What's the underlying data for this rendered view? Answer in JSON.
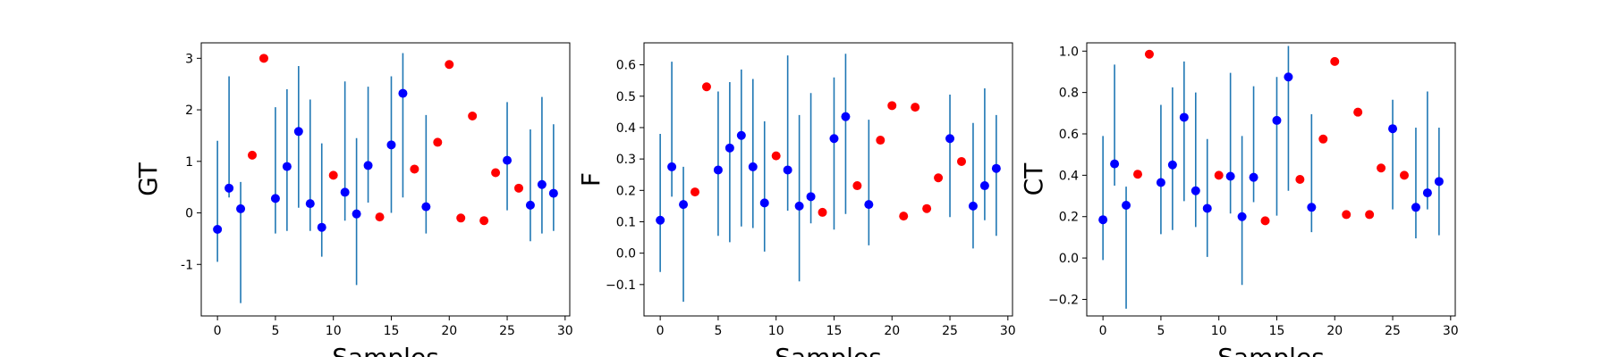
{
  "chart_data": [
    {
      "type": "scatter",
      "ylabel": "GT",
      "xlabel": "Samples",
      "xlim": [
        -1.4,
        30.4
      ],
      "ylim": [
        -2.0,
        3.3
      ],
      "xticks": [
        0,
        5,
        10,
        15,
        20,
        25,
        30
      ],
      "yticks": [
        -1,
        0,
        1,
        2,
        3
      ],
      "errorbar_series": {
        "color": "#0000ff",
        "errorbar_color": "#1f77b4",
        "points": [
          {
            "x": 0,
            "y": -0.32,
            "low": -0.95,
            "high": 1.4
          },
          {
            "x": 1,
            "y": 0.48,
            "low": 0.3,
            "high": 2.65
          },
          {
            "x": 2,
            "y": 0.08,
            "low": -1.75,
            "high": 0.6
          },
          {
            "x": 5,
            "y": 0.28,
            "low": -0.4,
            "high": 2.05
          },
          {
            "x": 6,
            "y": 0.9,
            "low": -0.35,
            "high": 2.4
          },
          {
            "x": 7,
            "y": 1.58,
            "low": 0.1,
            "high": 2.85
          },
          {
            "x": 8,
            "y": 0.18,
            "low": -0.35,
            "high": 2.2
          },
          {
            "x": 9,
            "y": -0.28,
            "low": -0.85,
            "high": 1.35
          },
          {
            "x": 11,
            "y": 0.4,
            "low": -0.15,
            "high": 2.55
          },
          {
            "x": 12,
            "y": -0.02,
            "low": -1.4,
            "high": 1.45
          },
          {
            "x": 13,
            "y": 0.92,
            "low": 0.2,
            "high": 2.45
          },
          {
            "x": 15,
            "y": 1.32,
            "low": 0.0,
            "high": 2.65
          },
          {
            "x": 16,
            "y": 2.32,
            "low": 0.3,
            "high": 3.1
          },
          {
            "x": 18,
            "y": 0.12,
            "low": -0.4,
            "high": 1.9
          },
          {
            "x": 25,
            "y": 1.02,
            "low": 0.05,
            "high": 2.15
          },
          {
            "x": 27,
            "y": 0.15,
            "low": -0.55,
            "high": 1.62
          },
          {
            "x": 28,
            "y": 0.55,
            "low": -0.4,
            "high": 2.25
          },
          {
            "x": 29,
            "y": 0.38,
            "low": -0.35,
            "high": 1.72
          }
        ]
      },
      "marker_series": {
        "color": "#ff0000",
        "points": [
          {
            "x": 3,
            "y": 1.12
          },
          {
            "x": 4,
            "y": 3.0
          },
          {
            "x": 10,
            "y": 0.73
          },
          {
            "x": 14,
            "y": -0.08
          },
          {
            "x": 17,
            "y": 0.85
          },
          {
            "x": 19,
            "y": 1.37
          },
          {
            "x": 20,
            "y": 2.88
          },
          {
            "x": 21,
            "y": -0.1
          },
          {
            "x": 22,
            "y": 1.88
          },
          {
            "x": 23,
            "y": -0.15
          },
          {
            "x": 24,
            "y": 0.78
          },
          {
            "x": 26,
            "y": 0.48
          }
        ]
      }
    },
    {
      "type": "scatter",
      "ylabel": "F",
      "xlabel": "Samples",
      "xlim": [
        -1.4,
        30.4
      ],
      "ylim": [
        -0.2,
        0.67
      ],
      "xticks": [
        0,
        5,
        10,
        15,
        20,
        25,
        30
      ],
      "yticks": [
        -0.1,
        0.0,
        0.1,
        0.2,
        0.3,
        0.4,
        0.5,
        0.6
      ],
      "ytick_labels": [
        "−0.1",
        "0.0",
        "0.1",
        "0.2",
        "0.3",
        "0.4",
        "0.5",
        "0.6"
      ],
      "errorbar_series": {
        "color": "#0000ff",
        "errorbar_color": "#1f77b4",
        "points": [
          {
            "x": 0,
            "y": 0.105,
            "low": -0.06,
            "high": 0.38
          },
          {
            "x": 1,
            "y": 0.275,
            "low": 0.18,
            "high": 0.61
          },
          {
            "x": 2,
            "y": 0.155,
            "low": -0.155,
            "high": 0.275
          },
          {
            "x": 5,
            "y": 0.265,
            "low": 0.055,
            "high": 0.515
          },
          {
            "x": 6,
            "y": 0.335,
            "low": 0.035,
            "high": 0.545
          },
          {
            "x": 7,
            "y": 0.375,
            "low": 0.085,
            "high": 0.585
          },
          {
            "x": 8,
            "y": 0.275,
            "low": 0.08,
            "high": 0.555
          },
          {
            "x": 9,
            "y": 0.16,
            "low": 0.005,
            "high": 0.42
          },
          {
            "x": 11,
            "y": 0.265,
            "low": 0.135,
            "high": 0.63
          },
          {
            "x": 12,
            "y": 0.15,
            "low": -0.09,
            "high": 0.44
          },
          {
            "x": 13,
            "y": 0.18,
            "low": 0.095,
            "high": 0.51
          },
          {
            "x": 15,
            "y": 0.365,
            "low": 0.075,
            "high": 0.56
          },
          {
            "x": 16,
            "y": 0.435,
            "low": 0.125,
            "high": 0.635
          },
          {
            "x": 18,
            "y": 0.155,
            "low": 0.025,
            "high": 0.425
          },
          {
            "x": 25,
            "y": 0.365,
            "low": 0.115,
            "high": 0.505
          },
          {
            "x": 27,
            "y": 0.15,
            "low": 0.015,
            "high": 0.415
          },
          {
            "x": 28,
            "y": 0.215,
            "low": 0.105,
            "high": 0.525
          },
          {
            "x": 29,
            "y": 0.27,
            "low": 0.055,
            "high": 0.44
          }
        ]
      },
      "marker_series": {
        "color": "#ff0000",
        "points": [
          {
            "x": 3,
            "y": 0.195
          },
          {
            "x": 4,
            "y": 0.53
          },
          {
            "x": 10,
            "y": 0.31
          },
          {
            "x": 14,
            "y": 0.13
          },
          {
            "x": 17,
            "y": 0.215
          },
          {
            "x": 19,
            "y": 0.36
          },
          {
            "x": 20,
            "y": 0.47
          },
          {
            "x": 21,
            "y": 0.118
          },
          {
            "x": 22,
            "y": 0.465
          },
          {
            "x": 23,
            "y": 0.142
          },
          {
            "x": 24,
            "y": 0.24
          },
          {
            "x": 26,
            "y": 0.292
          }
        ]
      }
    },
    {
      "type": "scatter",
      "ylabel": "CT",
      "xlabel": "Samples",
      "xlim": [
        -1.4,
        30.4
      ],
      "ylim": [
        -0.28,
        1.04
      ],
      "xticks": [
        0,
        5,
        10,
        15,
        20,
        25,
        30
      ],
      "yticks": [
        -0.2,
        0.0,
        0.2,
        0.4,
        0.6,
        0.8,
        1.0
      ],
      "ytick_labels": [
        "−0.2",
        "0.0",
        "0.2",
        "0.4",
        "0.6",
        "0.8",
        "1.0"
      ],
      "errorbar_series": {
        "color": "#0000ff",
        "errorbar_color": "#1f77b4",
        "points": [
          {
            "x": 0,
            "y": 0.185,
            "low": -0.01,
            "high": 0.59
          },
          {
            "x": 1,
            "y": 0.455,
            "low": 0.35,
            "high": 0.935
          },
          {
            "x": 2,
            "y": 0.255,
            "low": -0.245,
            "high": 0.345
          },
          {
            "x": 5,
            "y": 0.365,
            "low": 0.115,
            "high": 0.74
          },
          {
            "x": 6,
            "y": 0.45,
            "low": 0.135,
            "high": 0.825
          },
          {
            "x": 7,
            "y": 0.68,
            "low": 0.275,
            "high": 0.95
          },
          {
            "x": 8,
            "y": 0.325,
            "low": 0.15,
            "high": 0.8
          },
          {
            "x": 9,
            "y": 0.24,
            "low": 0.005,
            "high": 0.575
          },
          {
            "x": 11,
            "y": 0.395,
            "low": 0.215,
            "high": 0.895
          },
          {
            "x": 12,
            "y": 0.2,
            "low": -0.13,
            "high": 0.59
          },
          {
            "x": 13,
            "y": 0.39,
            "low": 0.27,
            "high": 0.83
          },
          {
            "x": 15,
            "y": 0.665,
            "low": 0.205,
            "high": 0.875
          },
          {
            "x": 16,
            "y": 0.875,
            "low": 0.325,
            "high": 1.025
          },
          {
            "x": 18,
            "y": 0.245,
            "low": 0.125,
            "high": 0.695
          },
          {
            "x": 25,
            "y": 0.625,
            "low": 0.235,
            "high": 0.765
          },
          {
            "x": 27,
            "y": 0.245,
            "low": 0.095,
            "high": 0.63
          },
          {
            "x": 28,
            "y": 0.315,
            "low": 0.235,
            "high": 0.805
          },
          {
            "x": 29,
            "y": 0.37,
            "low": 0.11,
            "high": 0.63
          }
        ]
      },
      "marker_series": {
        "color": "#ff0000",
        "points": [
          {
            "x": 3,
            "y": 0.405
          },
          {
            "x": 4,
            "y": 0.985
          },
          {
            "x": 10,
            "y": 0.4
          },
          {
            "x": 14,
            "y": 0.18
          },
          {
            "x": 17,
            "y": 0.38
          },
          {
            "x": 19,
            "y": 0.575
          },
          {
            "x": 20,
            "y": 0.95
          },
          {
            "x": 21,
            "y": 0.21
          },
          {
            "x": 22,
            "y": 0.705
          },
          {
            "x": 23,
            "y": 0.21
          },
          {
            "x": 24,
            "y": 0.435
          },
          {
            "x": 26,
            "y": 0.4
          }
        ]
      }
    }
  ]
}
